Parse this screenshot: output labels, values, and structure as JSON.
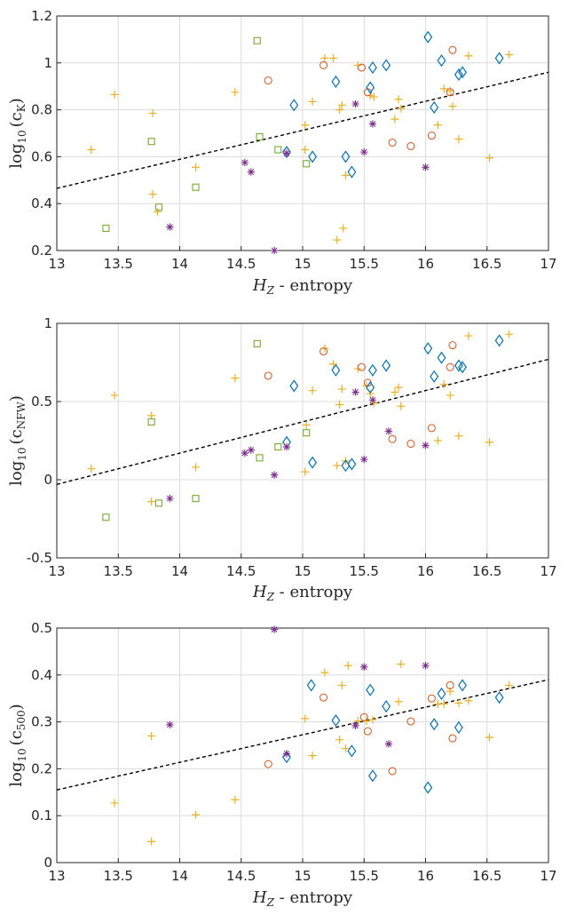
{
  "colors": {
    "plus": "#edb120",
    "circle": "#d95319",
    "diamond": "#0072bd",
    "square": "#77ac30",
    "star": "#7e2f8e",
    "fit": "#000000"
  },
  "chart_data": [
    {
      "type": "scatter",
      "xlabel_main": "H",
      "xlabel_sub": "Z",
      "xlabel_suffix": " - entropy",
      "ylabel_main": "log",
      "ylabel_base": "10",
      "ylabel_open": "(c",
      "ylabel_sub": "K",
      "ylabel_close": ")",
      "xlim": [
        13,
        17
      ],
      "ylim": [
        0.2,
        1.2
      ],
      "xticks": [
        13,
        13.5,
        14,
        14.5,
        15,
        15.5,
        16,
        16.5,
        17
      ],
      "xtick_labels": [
        "13",
        "13.5",
        "14",
        "14.5",
        "15",
        "15.5",
        "16",
        "16.5",
        "17"
      ],
      "yticks": [
        0.2,
        0.4,
        0.6,
        0.8,
        1.0,
        1.2
      ],
      "ytick_labels": [
        "0.2",
        "0.4",
        "0.6",
        "0.8",
        "1",
        "1.2"
      ],
      "fit_line": [
        [
          13,
          0.465
        ],
        [
          17,
          0.96
        ]
      ],
      "series": [
        {
          "marker": "plus",
          "points": [
            [
              13.28,
              0.63
            ],
            [
              13.47,
              0.865
            ],
            [
              13.78,
              0.785
            ],
            [
              13.78,
              0.44
            ],
            [
              13.82,
              0.365
            ],
            [
              14.13,
              0.555
            ],
            [
              14.45,
              0.875
            ],
            [
              15.02,
              0.735
            ],
            [
              15.02,
              0.63
            ],
            [
              15.08,
              0.835
            ],
            [
              15.18,
              1.02
            ],
            [
              15.25,
              1.02
            ],
            [
              15.3,
              0.8
            ],
            [
              15.32,
              0.82
            ],
            [
              15.35,
              0.52
            ],
            [
              15.28,
              0.245
            ],
            [
              15.33,
              0.295
            ],
            [
              15.45,
              0.99
            ],
            [
              15.55,
              0.86
            ],
            [
              15.58,
              0.855
            ],
            [
              15.75,
              0.76
            ],
            [
              15.78,
              0.845
            ],
            [
              15.8,
              0.805
            ],
            [
              16.1,
              0.735
            ],
            [
              16.15,
              0.89
            ],
            [
              16.2,
              0.88
            ],
            [
              16.22,
              0.815
            ],
            [
              16.27,
              0.675
            ],
            [
              16.35,
              1.03
            ],
            [
              16.52,
              0.595
            ],
            [
              16.68,
              1.035
            ]
          ]
        },
        {
          "marker": "circle",
          "points": [
            [
              14.72,
              0.925
            ],
            [
              15.17,
              0.99
            ],
            [
              15.48,
              0.98
            ],
            [
              15.53,
              0.875
            ],
            [
              15.73,
              0.66
            ],
            [
              15.88,
              0.645
            ],
            [
              16.05,
              0.69
            ],
            [
              16.2,
              0.875
            ],
            [
              16.22,
              1.055
            ]
          ]
        },
        {
          "marker": "diamond",
          "points": [
            [
              14.87,
              0.62
            ],
            [
              14.93,
              0.82
            ],
            [
              15.08,
              0.6
            ],
            [
              15.27,
              0.92
            ],
            [
              15.35,
              0.6
            ],
            [
              15.4,
              0.535
            ],
            [
              15.55,
              0.895
            ],
            [
              15.57,
              0.98
            ],
            [
              15.68,
              0.99
            ],
            [
              16.02,
              1.11
            ],
            [
              16.07,
              0.81
            ],
            [
              16.13,
              1.01
            ],
            [
              16.27,
              0.95
            ],
            [
              16.3,
              0.96
            ],
            [
              16.6,
              1.02
            ]
          ]
        },
        {
          "marker": "square",
          "points": [
            [
              13.4,
              0.295
            ],
            [
              13.77,
              0.665
            ],
            [
              13.83,
              0.385
            ],
            [
              14.13,
              0.47
            ],
            [
              14.63,
              1.095
            ],
            [
              14.65,
              0.685
            ],
            [
              14.8,
              0.63
            ],
            [
              15.03,
              0.57
            ]
          ]
        },
        {
          "marker": "star",
          "points": [
            [
              13.92,
              0.3
            ],
            [
              14.53,
              0.575
            ],
            [
              14.58,
              0.535
            ],
            [
              14.77,
              0.2
            ],
            [
              14.87,
              0.615
            ],
            [
              15.43,
              0.825
            ],
            [
              15.5,
              0.62
            ],
            [
              15.57,
              0.74
            ],
            [
              16.0,
              0.555
            ]
          ]
        }
      ]
    },
    {
      "type": "scatter",
      "xlabel_main": "H",
      "xlabel_sub": "Z",
      "xlabel_suffix": " - entropy",
      "ylabel_main": "log",
      "ylabel_base": "10",
      "ylabel_open": "(c",
      "ylabel_sub": "NFW",
      "ylabel_close": ")",
      "xlim": [
        13,
        17
      ],
      "ylim": [
        -0.5,
        1
      ],
      "xticks": [
        13,
        13.5,
        14,
        14.5,
        15,
        15.5,
        16,
        16.5,
        17
      ],
      "xtick_labels": [
        "13",
        "13.5",
        "14",
        "14.5",
        "15",
        "15.5",
        "16",
        "16.5",
        "17"
      ],
      "yticks": [
        -0.5,
        0,
        0.5,
        1
      ],
      "ytick_labels": [
        "-0.5",
        "0",
        "0.5",
        "1"
      ],
      "fit_line": [
        [
          13,
          -0.03
        ],
        [
          17,
          0.77
        ]
      ],
      "series": [
        {
          "marker": "plus",
          "points": [
            [
              13.28,
              0.07
            ],
            [
              13.47,
              0.54
            ],
            [
              13.77,
              0.41
            ],
            [
              13.77,
              -0.14
            ],
            [
              14.13,
              0.08
            ],
            [
              14.45,
              0.65
            ],
            [
              15.02,
              0.05
            ],
            [
              15.03,
              0.35
            ],
            [
              15.08,
              0.57
            ],
            [
              15.18,
              0.84
            ],
            [
              15.25,
              0.74
            ],
            [
              15.28,
              0.09
            ],
            [
              15.3,
              0.48
            ],
            [
              15.32,
              0.58
            ],
            [
              15.35,
              0.12
            ],
            [
              15.45,
              0.71
            ],
            [
              15.52,
              0.6
            ],
            [
              15.55,
              0.55
            ],
            [
              15.58,
              0.49
            ],
            [
              15.75,
              0.56
            ],
            [
              15.78,
              0.59
            ],
            [
              15.8,
              0.47
            ],
            [
              16.1,
              0.25
            ],
            [
              16.15,
              0.61
            ],
            [
              16.2,
              0.54
            ],
            [
              16.27,
              0.28
            ],
            [
              16.35,
              0.92
            ],
            [
              16.52,
              0.24
            ],
            [
              16.68,
              0.93
            ]
          ]
        },
        {
          "marker": "circle",
          "points": [
            [
              14.72,
              0.665
            ],
            [
              15.17,
              0.82
            ],
            [
              15.48,
              0.72
            ],
            [
              15.53,
              0.62
            ],
            [
              15.73,
              0.26
            ],
            [
              15.88,
              0.23
            ],
            [
              16.05,
              0.33
            ],
            [
              16.2,
              0.72
            ],
            [
              16.22,
              0.86
            ]
          ]
        },
        {
          "marker": "diamond",
          "points": [
            [
              14.87,
              0.24
            ],
            [
              14.93,
              0.6
            ],
            [
              15.08,
              0.11
            ],
            [
              15.27,
              0.7
            ],
            [
              15.35,
              0.09
            ],
            [
              15.4,
              0.1
            ],
            [
              15.55,
              0.59
            ],
            [
              15.57,
              0.7
            ],
            [
              15.68,
              0.73
            ],
            [
              16.02,
              0.84
            ],
            [
              16.07,
              0.66
            ],
            [
              16.13,
              0.78
            ],
            [
              16.27,
              0.73
            ],
            [
              16.3,
              0.72
            ],
            [
              16.6,
              0.89
            ]
          ]
        },
        {
          "marker": "square",
          "points": [
            [
              13.4,
              -0.24
            ],
            [
              13.77,
              0.37
            ],
            [
              13.83,
              -0.15
            ],
            [
              14.13,
              -0.12
            ],
            [
              14.63,
              0.87
            ],
            [
              14.65,
              0.14
            ],
            [
              14.8,
              0.21
            ],
            [
              15.03,
              0.3
            ]
          ]
        },
        {
          "marker": "star",
          "points": [
            [
              13.92,
              -0.12
            ],
            [
              14.53,
              0.17
            ],
            [
              14.58,
              0.19
            ],
            [
              14.77,
              0.03
            ],
            [
              14.87,
              0.21
            ],
            [
              15.43,
              0.56
            ],
            [
              15.5,
              0.13
            ],
            [
              15.57,
              0.51
            ],
            [
              15.7,
              0.31
            ],
            [
              16.0,
              0.22
            ]
          ]
        }
      ]
    },
    {
      "type": "scatter",
      "xlabel_main": "H",
      "xlabel_sub": "Z",
      "xlabel_suffix": " - entropy",
      "ylabel_main": "log",
      "ylabel_base": "10",
      "ylabel_open": "(c",
      "ylabel_sub": "500",
      "ylabel_close": ")",
      "xlim": [
        13,
        17
      ],
      "ylim": [
        0,
        0.5
      ],
      "xticks": [
        13,
        13.5,
        14,
        14.5,
        15,
        15.5,
        16,
        16.5,
        17
      ],
      "xtick_labels": [
        "13",
        "13.5",
        "14",
        "14.5",
        "15",
        "15.5",
        "16",
        "16.5",
        "17"
      ],
      "yticks": [
        0,
        0.1,
        0.2,
        0.3,
        0.4,
        0.5
      ],
      "ytick_labels": [
        "0",
        "0.1",
        "0.2",
        "0.3",
        "0.4",
        "0.5"
      ],
      "fit_line": [
        [
          13,
          0.155
        ],
        [
          17,
          0.39
        ]
      ],
      "series": [
        {
          "marker": "plus",
          "points": [
            [
              13.47,
              0.127
            ],
            [
              13.77,
              0.27
            ],
            [
              13.77,
              0.045
            ],
            [
              14.13,
              0.102
            ],
            [
              14.45,
              0.134
            ],
            [
              15.02,
              0.307
            ],
            [
              15.08,
              0.228
            ],
            [
              15.18,
              0.405
            ],
            [
              15.3,
              0.262
            ],
            [
              15.32,
              0.378
            ],
            [
              15.35,
              0.243
            ],
            [
              15.37,
              0.42
            ],
            [
              15.45,
              0.302
            ],
            [
              15.52,
              0.302
            ],
            [
              15.57,
              0.305
            ],
            [
              15.78,
              0.343
            ],
            [
              15.8,
              0.423
            ],
            [
              16.1,
              0.338
            ],
            [
              16.15,
              0.338
            ],
            [
              16.2,
              0.365
            ],
            [
              16.27,
              0.34
            ],
            [
              16.35,
              0.345
            ],
            [
              16.52,
              0.267
            ],
            [
              16.68,
              0.378
            ]
          ]
        },
        {
          "marker": "circle",
          "points": [
            [
              14.72,
              0.21
            ],
            [
              15.17,
              0.352
            ],
            [
              15.5,
              0.31
            ],
            [
              15.53,
              0.28
            ],
            [
              15.73,
              0.195
            ],
            [
              15.88,
              0.301
            ],
            [
              16.05,
              0.35
            ],
            [
              16.2,
              0.378
            ],
            [
              16.22,
              0.265
            ]
          ]
        },
        {
          "marker": "diamond",
          "points": [
            [
              14.87,
              0.225
            ],
            [
              15.07,
              0.378
            ],
            [
              15.27,
              0.303
            ],
            [
              15.4,
              0.238
            ],
            [
              15.55,
              0.368
            ],
            [
              15.57,
              0.185
            ],
            [
              15.68,
              0.333
            ],
            [
              16.02,
              0.16
            ],
            [
              16.07,
              0.295
            ],
            [
              16.13,
              0.36
            ],
            [
              16.27,
              0.288
            ],
            [
              16.3,
              0.378
            ],
            [
              16.6,
              0.352
            ]
          ]
        },
        {
          "marker": "star",
          "points": [
            [
              13.92,
              0.294
            ],
            [
              14.77,
              0.497
            ],
            [
              14.87,
              0.232
            ],
            [
              15.43,
              0.292
            ],
            [
              15.5,
              0.417
            ],
            [
              15.7,
              0.253
            ],
            [
              16.0,
              0.42
            ]
          ]
        }
      ]
    }
  ]
}
